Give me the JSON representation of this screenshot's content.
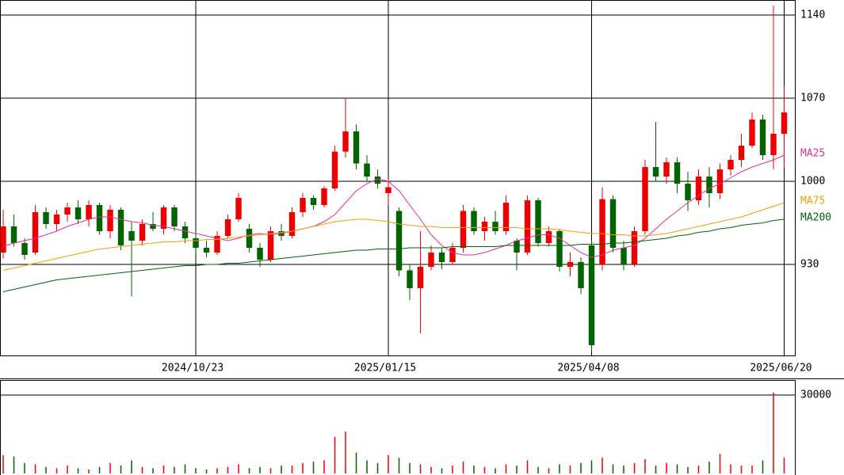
{
  "chart_data": [
    {
      "type": "candlestick",
      "up_color": "#ee0000",
      "down_color": "#006400",
      "xlim": [
        -0.3,
        74
      ],
      "ylim": [
        853.33,
        1152.67
      ],
      "xticks": [
        {
          "value": 18,
          "label": "2024/10/23"
        },
        {
          "value": 36,
          "label": "2025/01/15"
        },
        {
          "value": 55,
          "label": "2025/04/08"
        },
        {
          "value": 73,
          "label": "2025/06/20"
        }
      ],
      "yticks": [
        930,
        1000,
        1070,
        1140
      ],
      "grid": true,
      "open": [
        940,
        962,
        948,
        940,
        974,
        964,
        972,
        978,
        968,
        980,
        958,
        976,
        958,
        950,
        964,
        960,
        978,
        962,
        952,
        944,
        940,
        954,
        968,
        960,
        944,
        934,
        958,
        954,
        974,
        986,
        980,
        994,
        1025,
        1042,
        1015,
        1004,
        990,
        975,
        925,
        910,
        928,
        940,
        932,
        944,
        975,
        958,
        966,
        958,
        950,
        940,
        984,
        948,
        958,
        928,
        932,
        946,
        930,
        985,
        944,
        930,
        958,
        1012,
        1004,
        1016,
        998,
        984,
        1004,
        990,
        1010,
        1018,
        1030,
        1052,
        1022,
        1040
      ],
      "high": [
        976,
        972,
        952,
        980,
        978,
        976,
        982,
        984,
        984,
        982,
        980,
        978,
        966,
        968,
        974,
        980,
        980,
        966,
        958,
        950,
        958,
        972,
        990,
        964,
        948,
        962,
        964,
        978,
        990,
        988,
        996,
        1030,
        1070,
        1048,
        1022,
        1010,
        1002,
        978,
        930,
        958,
        946,
        944,
        948,
        980,
        978,
        970,
        975,
        988,
        952,
        988,
        986,
        962,
        960,
        940,
        936,
        950,
        995,
        988,
        950,
        962,
        1018,
        1050,
        1020,
        1020,
        1008,
        1010,
        1012,
        1015,
        1022,
        1040,
        1058,
        1056,
        1148,
        1080
      ],
      "low": [
        935,
        945,
        934,
        938,
        960,
        958,
        966,
        964,
        962,
        955,
        952,
        942,
        903,
        946,
        958,
        955,
        958,
        948,
        940,
        936,
        938,
        952,
        966,
        940,
        928,
        932,
        950,
        952,
        970,
        976,
        978,
        992,
        1020,
        1010,
        1000,
        994,
        980,
        920,
        900,
        872,
        925,
        926,
        930,
        940,
        955,
        950,
        955,
        955,
        925,
        938,
        945,
        945,
        924,
        920,
        905,
        857,
        925,
        940,
        925,
        928,
        955,
        1000,
        998,
        990,
        975,
        980,
        978,
        985,
        1005,
        1012,
        1028,
        1018,
        1010,
        1012
      ],
      "close": [
        962,
        948,
        938,
        974,
        964,
        972,
        978,
        968,
        980,
        958,
        976,
        946,
        950,
        964,
        960,
        978,
        962,
        952,
        944,
        940,
        954,
        968,
        986,
        944,
        934,
        958,
        954,
        974,
        986,
        980,
        994,
        1025,
        1042,
        1015,
        1004,
        998,
        995,
        925,
        910,
        928,
        940,
        932,
        944,
        975,
        958,
        966,
        958,
        982,
        940,
        984,
        948,
        958,
        928,
        932,
        910,
        862,
        985,
        944,
        930,
        958,
        1012,
        1004,
        1016,
        998,
        984,
        1004,
        990,
        1010,
        1018,
        1030,
        1052,
        1022,
        1040,
        1058
      ],
      "series": [
        {
          "name": "MA25",
          "color": "#e0309a",
          "values": [
            945,
            948,
            950,
            952,
            955,
            958,
            962,
            965,
            968,
            970,
            970,
            968,
            966,
            965,
            963,
            962,
            960,
            958,
            956,
            954,
            952,
            950,
            952,
            955,
            956,
            955,
            956,
            958,
            960,
            962,
            966,
            972,
            982,
            992,
            998,
            1002,
            1000,
            992,
            980,
            968,
            955,
            946,
            940,
            938,
            938,
            940,
            943,
            946,
            950,
            952,
            955,
            955,
            952,
            946,
            940,
            936,
            938,
            942,
            944,
            946,
            952,
            960,
            968,
            975,
            982,
            988,
            994,
            998,
            1003,
            1008,
            1012,
            1015,
            1018,
            1022
          ]
        },
        {
          "name": "MA75",
          "color": "#f0a000",
          "values": [
            925,
            927,
            929,
            931,
            933,
            935,
            937,
            939,
            941,
            943,
            944,
            945,
            946,
            947,
            948,
            949,
            949,
            950,
            950,
            951,
            951,
            952,
            953,
            954,
            955,
            956,
            957,
            958,
            960,
            962,
            964,
            966,
            967,
            968,
            968,
            967,
            966,
            964,
            963,
            962,
            962,
            961,
            961,
            961,
            961,
            961,
            961,
            961,
            961,
            960,
            960,
            960,
            959,
            958,
            957,
            956,
            956,
            955,
            955,
            954,
            954,
            955,
            956,
            958,
            960,
            962,
            964,
            966,
            968,
            970,
            973,
            976,
            979,
            982
          ]
        },
        {
          "name": "MA200",
          "color": "#006400",
          "values": [
            907,
            909,
            911,
            913,
            915,
            917,
            918,
            919,
            920,
            921,
            922,
            923,
            924,
            925,
            926,
            927,
            928,
            929,
            929,
            930,
            930,
            931,
            931,
            932,
            933,
            934,
            935,
            936,
            937,
            938,
            939,
            940,
            941,
            942,
            942,
            943,
            943,
            943,
            944,
            944,
            944,
            944,
            945,
            945,
            945,
            945,
            945,
            946,
            946,
            946,
            946,
            946,
            946,
            946,
            947,
            947,
            947,
            948,
            948,
            949,
            950,
            951,
            952,
            954,
            955,
            957,
            958,
            960,
            961,
            963,
            964,
            965,
            967,
            968
          ]
        }
      ]
    },
    {
      "type": "bar",
      "ylim": [
        0,
        35760
      ],
      "yticks": [
        30000
      ],
      "values": [
        7000,
        6500,
        4000,
        3500,
        2500,
        2000,
        3000,
        2000,
        1500,
        2500,
        4000,
        3000,
        5000,
        2500,
        2000,
        3000,
        2500,
        3500,
        2000,
        1500,
        2000,
        2500,
        3500,
        2000,
        2500,
        2000,
        3000,
        3000,
        4000,
        4500,
        5000,
        14000,
        16000,
        8000,
        5000,
        4000,
        7000,
        6000,
        4000,
        3500,
        2500,
        2000,
        3000,
        4500,
        3000,
        2500,
        2000,
        3500,
        3000,
        5000,
        2500,
        2000,
        3500,
        3000,
        4000,
        5000,
        6000,
        3500,
        3000,
        4000,
        5500,
        3000,
        4000,
        3500,
        2500,
        3000,
        4500,
        7500,
        3500,
        3000,
        3000,
        5000,
        31000,
        6000
      ]
    }
  ]
}
